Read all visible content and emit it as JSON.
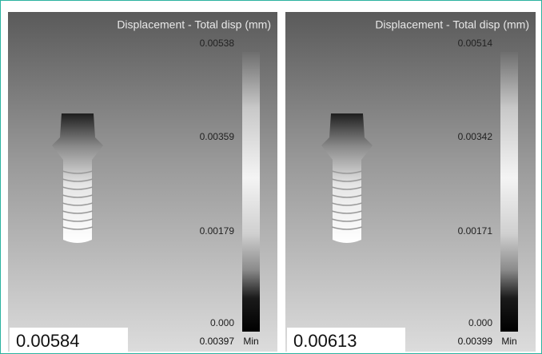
{
  "panels": [
    {
      "title": "Displacement - Total disp (mm)",
      "scale_labels": [
        "0.00538",
        "0.00359",
        "0.00179",
        "0.000"
      ],
      "min_value": "0.00397",
      "min_label": "Min",
      "boxed_value": "0.00584"
    },
    {
      "title": "Displacement - Total disp (mm)",
      "scale_labels": [
        "0.00514",
        "0.00342",
        "0.00171",
        "0.000"
      ],
      "min_value": "0.00399",
      "min_label": "Min",
      "boxed_value": "0.00613"
    }
  ]
}
